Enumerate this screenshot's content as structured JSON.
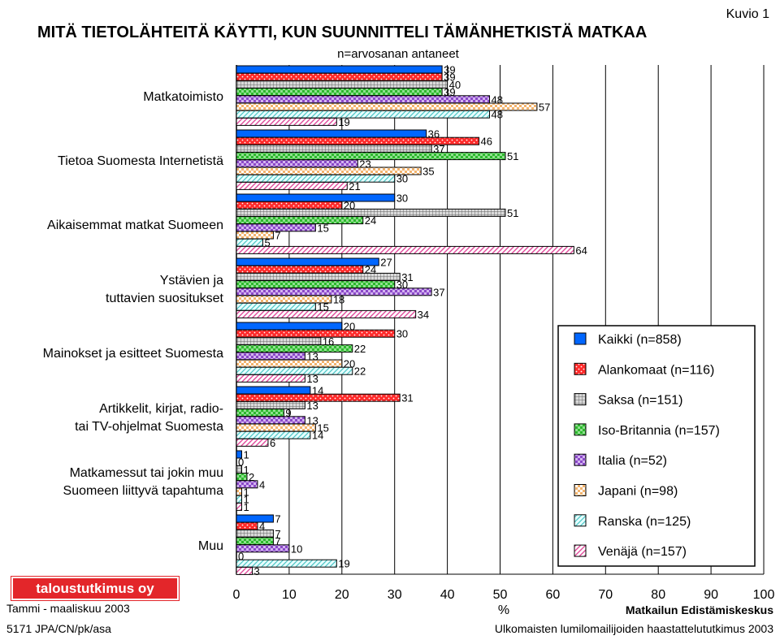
{
  "figure_label": "Kuvio 1",
  "footer": {
    "logo_text": "taloustutkimus oy",
    "date": "Tammi - maaliskuu 2003",
    "code": "5171 JPA/CN/pk/asa",
    "org": "Matkailun Edistämiskeskus",
    "survey": "Ulkomaisten lumilomailijoiden haastattelututkimus 2003"
  },
  "colors": {
    "Kaikki": "#0066ff",
    "Alankomaat": "#ff2a2a",
    "Saksa": "#b8b8b8",
    "Iso-Britannia": "#33cc33",
    "Italia": "#9b5bd6",
    "Japani": "#ffd39a",
    "Ranska": "#b8f0f0",
    "Venäjä": "#ff9ecf"
  },
  "chart_data": {
    "type": "bar",
    "orientation": "horizontal",
    "title": "MITÄ TIETOLÄHTEITÄ KÄYTTI, KUN SUUNNITTELI TÄMÄNHETKISTÄ MATKAA",
    "subtitle": "n=arvosanan antaneet",
    "xlabel": "%",
    "xlim": [
      0,
      100
    ],
    "xticks": [
      0,
      10,
      20,
      30,
      40,
      50,
      60,
      70,
      80,
      90,
      100
    ],
    "grid": "vertical",
    "legend_position": "right",
    "categories": [
      "Matkatoimisto",
      "Tietoa Suomesta Internetistä",
      "Aikaisemmat matkat Suomeen",
      "Ystävien ja tuttavien suositukset",
      "Mainokset ja esitteet Suomesta",
      "Artikkelit, kirjat, radio- tai TV-ohjelmat Suomesta",
      "Matkamessut tai jokin muu Suomeen liittyvä tapahtuma",
      "Muu"
    ],
    "series": [
      {
        "name": "Kaikki (n=858)",
        "key": "Kaikki",
        "values": [
          39,
          36,
          30,
          27,
          20,
          14,
          1,
          7
        ]
      },
      {
        "name": "Alankomaat (n=116)",
        "key": "Alankomaat",
        "values": [
          39,
          46,
          20,
          24,
          30,
          31,
          0,
          4
        ]
      },
      {
        "name": "Saksa (n=151)",
        "key": "Saksa",
        "values": [
          40,
          37,
          51,
          31,
          16,
          13,
          1,
          7
        ]
      },
      {
        "name": "Iso-Britannia (n=157)",
        "key": "Iso-Britannia",
        "values": [
          39,
          51,
          24,
          30,
          22,
          9,
          2,
          7
        ]
      },
      {
        "name": "Italia (n=52)",
        "key": "Italia",
        "values": [
          48,
          23,
          15,
          37,
          13,
          13,
          4,
          10
        ]
      },
      {
        "name": "Japani (n=98)",
        "key": "Japani",
        "values": [
          57,
          35,
          7,
          18,
          20,
          15,
          1,
          0
        ]
      },
      {
        "name": "Ranska (n=125)",
        "key": "Ranska",
        "values": [
          48,
          30,
          5,
          15,
          22,
          14,
          1,
          19
        ]
      },
      {
        "name": "Venäjä (n=157)",
        "key": "Venäjä",
        "values": [
          19,
          21,
          64,
          34,
          13,
          6,
          1,
          3
        ]
      }
    ]
  }
}
